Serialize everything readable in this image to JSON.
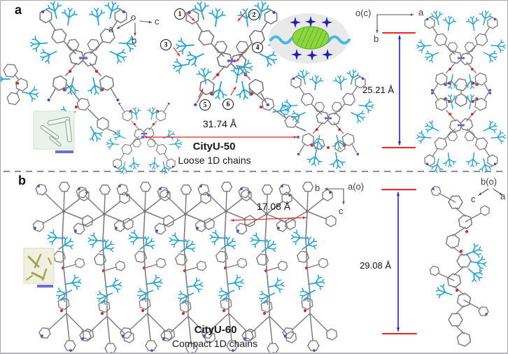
{
  "figure": {
    "panel_a": {
      "label": "a",
      "compound": "CityU-50",
      "chain_type": "Loose 1D chains",
      "width_measure": "31.74 Å",
      "height_measure": "25.21 Å",
      "axis_left": {
        "origin": "o",
        "left": "a",
        "right": "c",
        "down": "b"
      },
      "axis_right": {
        "origin": "o(c)",
        "right": "a",
        "down": "b"
      },
      "site_labels": [
        "1",
        "2",
        "3",
        "4",
        "5",
        "6"
      ]
    },
    "panel_b": {
      "label": "b",
      "compound": "CityU-60",
      "chain_type": "Compact 1D chains",
      "width_measure": "17.08 Å",
      "height_measure": "29.08 Å",
      "axis_left": {
        "left": "b",
        "origin": "a(o)",
        "down": "c"
      },
      "axis_right": {
        "origin": "b(o)",
        "down_left": "c",
        "down_right": "a"
      }
    },
    "colors": {
      "carbon_gray": "#7d7d7d",
      "ligand_cyan": "#29a4d9",
      "oxygen_red": "#e02424",
      "nitrogen_blue": "#4a4ad0",
      "nn_purple": "#6a5acd",
      "annotation_red": "#ee2222",
      "measure_blue": "#2222cf",
      "axis_gray": "#555555",
      "star_navy": "#1c1cb0",
      "guest_green": "#8ed63e",
      "ellipse_gray": "#e9e9e9",
      "wave_cyan": "#45b8e8",
      "scalebar_purple": "#6e6ed2"
    }
  }
}
